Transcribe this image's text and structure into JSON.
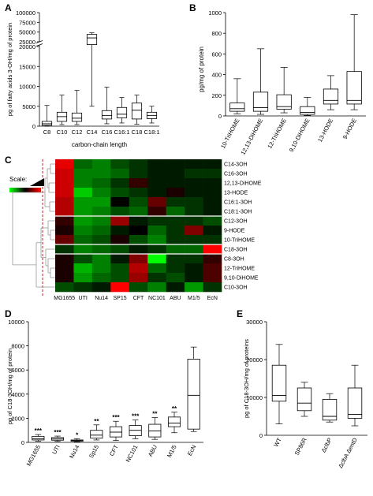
{
  "colors": {
    "heat_low": "#00ff00",
    "heat_mid": "#000000",
    "heat_high": "#ff0000",
    "dendro": "#999999",
    "dashed": "#cc0000"
  },
  "panels": {
    "A": {
      "letter": "A",
      "ylabel": "pg of fatty acids 3-OH/mg of protein",
      "xlabel": "carbon-chain length"
    },
    "B": {
      "letter": "B",
      "ylabel": "pg/mg of protein"
    },
    "C": {
      "letter": "C",
      "scale_label": "Scale:"
    },
    "D": {
      "letter": "D",
      "ylabel": "pg of C18-3OH/mg of protein"
    },
    "E": {
      "letter": "E",
      "ylabel": "pg of C18-3OH/mg of proteins"
    }
  },
  "chart_data": [
    {
      "id": "A",
      "type": "box",
      "categories": [
        "C8",
        "C10",
        "C12",
        "C14",
        "C16",
        "C16:1",
        "C18",
        "C18:1"
      ],
      "xlabel": "carbon-chain length",
      "ylabel": "pg of fatty acids 3-OH/mg of protein",
      "y_ticks_lower": [
        "0",
        "5000",
        "10000",
        "15000",
        "20000"
      ],
      "y_ticks_upper": [
        "25000",
        "50000",
        "75000",
        "100000"
      ],
      "axis_break": [
        20000,
        25000
      ],
      "boxes": [
        {
          "min": 0,
          "q1": 200,
          "median": 600,
          "q3": 1200,
          "max": 5200
        },
        {
          "min": 400,
          "q1": 1200,
          "median": 2400,
          "q3": 3500,
          "max": 7800
        },
        {
          "min": 400,
          "q1": 1200,
          "median": 2000,
          "q3": 3300,
          "max": 9000
        },
        {
          "min": 5000,
          "q1": 22000,
          "median": 35000,
          "q3": 44000,
          "max": 48000
        },
        {
          "min": 600,
          "q1": 1800,
          "median": 2700,
          "q3": 3900,
          "max": 9800
        },
        {
          "min": 800,
          "q1": 2100,
          "median": 3000,
          "q3": 4700,
          "max": 7200
        },
        {
          "min": 500,
          "q1": 1800,
          "median": 4000,
          "q3": 5800,
          "max": 7800
        },
        {
          "min": 800,
          "q1": 1900,
          "median": 2700,
          "q3": 3500,
          "max": 5000
        }
      ]
    },
    {
      "id": "B",
      "type": "box",
      "categories": [
        "10-TriHOME",
        "12,13-DiHOME",
        "12-TriHOME",
        "9,10-DiHOME",
        "13-HODE",
        "9-HODE"
      ],
      "ylabel": "pg/mg of protein",
      "y_ticks": [
        "0",
        "200",
        "400",
        "600",
        "800",
        "1000"
      ],
      "ylim": [
        0,
        1000
      ],
      "boxes": [
        {
          "min": 20,
          "q1": 45,
          "median": 70,
          "q3": 125,
          "max": 360
        },
        {
          "min": 15,
          "q1": 45,
          "median": 80,
          "q3": 230,
          "max": 650
        },
        {
          "min": 30,
          "q1": 65,
          "median": 90,
          "q3": 205,
          "max": 470
        },
        {
          "min": 5,
          "q1": 15,
          "median": 35,
          "q3": 90,
          "max": 180
        },
        {
          "min": 60,
          "q1": 115,
          "median": 150,
          "q3": 260,
          "max": 390
        },
        {
          "min": 60,
          "q1": 115,
          "median": 150,
          "q3": 430,
          "max": 980
        }
      ]
    },
    {
      "id": "C",
      "type": "heatmap",
      "columns": [
        "MG1655",
        "UTI",
        "Nu14",
        "SP15",
        "CFT",
        "NC101",
        "ABU",
        "M1/5",
        "EcN"
      ],
      "rows": [
        "C14-3OH",
        "C16-3OH",
        "12,13-DiHOME",
        "13-HODE",
        "C16:1-3OH",
        "C18:1-3OH",
        "C12-3OH",
        "9-HODE",
        "10-TriHOME",
        "C18-3OH",
        "C8-3OH",
        "12-TriHOME",
        "9,10-DiHOME",
        "C10-3OH"
      ],
      "values": [
        [
          0.9,
          -0.4,
          -0.5,
          -0.3,
          -0.2,
          -0.1,
          -0.1,
          -0.1,
          -0.1
        ],
        [
          0.8,
          -0.5,
          -0.5,
          -0.4,
          -0.2,
          -0.1,
          -0.1,
          -0.2,
          -0.2
        ],
        [
          0.8,
          -0.5,
          -0.4,
          -0.2,
          0.2,
          -0.1,
          -0.1,
          -0.1,
          -0.1
        ],
        [
          0.8,
          -0.8,
          -0.5,
          -0.3,
          -0.2,
          -0.1,
          0.1,
          -0.1,
          -0.1
        ],
        [
          0.7,
          -0.6,
          -0.6,
          0.0,
          -0.3,
          0.4,
          -0.2,
          -0.2,
          -0.1
        ],
        [
          0.7,
          -0.6,
          -0.5,
          -0.3,
          -0.4,
          0.2,
          -0.4,
          -0.2,
          -0.1
        ],
        [
          0.2,
          -0.6,
          -0.5,
          0.6,
          -0.1,
          -0.2,
          -0.2,
          -0.2,
          -0.3
        ],
        [
          0.1,
          -0.5,
          -0.4,
          -0.1,
          0.0,
          -0.4,
          -0.2,
          0.5,
          -0.1
        ],
        [
          0.4,
          -0.4,
          -0.3,
          0.1,
          -0.3,
          -0.5,
          -0.2,
          -0.2,
          -0.2
        ],
        [
          -0.2,
          -0.5,
          -0.4,
          -0.3,
          -0.1,
          -0.2,
          -0.4,
          -0.4,
          1.0
        ],
        [
          0.1,
          -0.3,
          -0.5,
          -0.1,
          0.5,
          -1.0,
          -0.2,
          -0.2,
          0.2
        ],
        [
          0.1,
          -0.7,
          -0.5,
          -0.3,
          0.7,
          -0.4,
          -0.2,
          -0.1,
          0.3
        ],
        [
          0.1,
          -0.6,
          -0.4,
          -0.3,
          0.6,
          -0.2,
          -0.3,
          -0.1,
          0.3
        ],
        [
          -0.3,
          -0.2,
          -0.1,
          1.0,
          -0.3,
          -0.5,
          -0.1,
          -0.6,
          -0.2
        ]
      ],
      "group_breaks_after_row": [
        5,
        8,
        9
      ]
    },
    {
      "id": "D",
      "type": "box",
      "categories": [
        "MG1655",
        "UTI",
        "Nu14",
        "Sp15",
        "CFT",
        "NC101",
        "ABU",
        "M1/5",
        "EcN"
      ],
      "ylabel": "pg of C18-3OH/mg of protein",
      "y_ticks": [
        "0",
        "2000",
        "4000",
        "6000",
        "8000",
        "10000"
      ],
      "ylim": [
        0,
        10000
      ],
      "significance": [
        "***",
        "***",
        "*",
        "**",
        "***",
        "***",
        "**",
        "**",
        ""
      ],
      "boxes": [
        {
          "min": 100,
          "q1": 200,
          "median": 300,
          "q3": 500,
          "max": 650
        },
        {
          "min": 80,
          "q1": 180,
          "median": 280,
          "q3": 400,
          "max": 520
        },
        {
          "min": 50,
          "q1": 100,
          "median": 150,
          "q3": 200,
          "max": 300
        },
        {
          "min": 200,
          "q1": 350,
          "median": 600,
          "q3": 1000,
          "max": 1450
        },
        {
          "min": 150,
          "q1": 450,
          "median": 850,
          "q3": 1300,
          "max": 1750
        },
        {
          "min": 300,
          "q1": 550,
          "median": 1000,
          "q3": 1400,
          "max": 1850
        },
        {
          "min": 250,
          "q1": 450,
          "median": 950,
          "q3": 1500,
          "max": 2050
        },
        {
          "min": 800,
          "q1": 1300,
          "median": 1600,
          "q3": 2100,
          "max": 2500
        },
        {
          "min": 900,
          "q1": 1100,
          "median": 3900,
          "q3": 6900,
          "max": 7900
        }
      ]
    },
    {
      "id": "E",
      "type": "box",
      "categories": [
        "WT",
        "SP86R",
        "ΔclbP",
        "ΔclbA ΔentD"
      ],
      "ylabel": "pg of C18-3OH/mg of proteins",
      "y_ticks": [
        "0",
        "10000",
        "20000",
        "30000"
      ],
      "ylim": [
        0,
        30000
      ],
      "boxes": [
        {
          "min": 3000,
          "q1": 9000,
          "median": 10500,
          "q3": 18500,
          "max": 24000
        },
        {
          "min": 5000,
          "q1": 6500,
          "median": 8500,
          "q3": 12500,
          "max": 14000
        },
        {
          "min": 3500,
          "q1": 4000,
          "median": 5000,
          "q3": 9500,
          "max": 11000
        },
        {
          "min": 2500,
          "q1": 4500,
          "median": 5500,
          "q3": 12500,
          "max": 18500
        }
      ]
    }
  ]
}
